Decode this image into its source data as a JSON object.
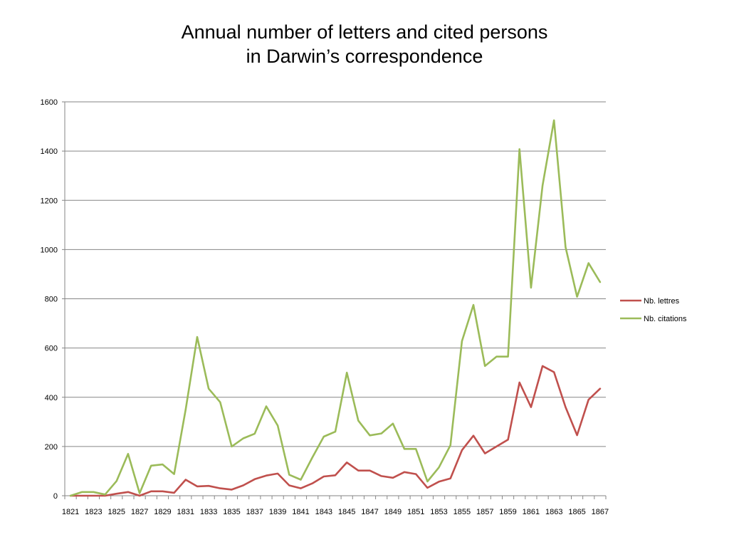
{
  "chart_data": {
    "type": "line",
    "title_line1": "Annual number of letters and cited persons",
    "title_line2": "in Darwin’s correspondence",
    "xlabel": "",
    "ylabel": "",
    "ylim": [
      0,
      1600
    ],
    "yticks": [
      0,
      200,
      400,
      600,
      800,
      1000,
      1200,
      1400,
      1600
    ],
    "x": [
      1821,
      1822,
      1823,
      1824,
      1825,
      1826,
      1827,
      1828,
      1829,
      1830,
      1831,
      1832,
      1833,
      1834,
      1835,
      1836,
      1837,
      1838,
      1839,
      1840,
      1841,
      1842,
      1843,
      1844,
      1845,
      1846,
      1847,
      1848,
      1849,
      1850,
      1851,
      1852,
      1853,
      1854,
      1855,
      1856,
      1857,
      1858,
      1859,
      1860,
      1861,
      1862,
      1863,
      1864,
      1865,
      1866,
      1867
    ],
    "xtick_labels": [
      "1821",
      "1823",
      "1825",
      "1827",
      "1829",
      "1831",
      "1833",
      "1835",
      "1837",
      "1839",
      "1841",
      "1843",
      "1845",
      "1847",
      "1849",
      "1851",
      "1853",
      "1855",
      "1857",
      "1859",
      "1861",
      "1863",
      "1865",
      "1867"
    ],
    "grid": "horizontal",
    "legend_position": "right",
    "series": [
      {
        "name": "Nb. lettres",
        "color": "#c0504d",
        "values": [
          0,
          0,
          0,
          0,
          8,
          15,
          0,
          18,
          18,
          12,
          65,
          38,
          40,
          30,
          25,
          42,
          67,
          82,
          90,
          42,
          30,
          50,
          78,
          83,
          135,
          102,
          102,
          80,
          73,
          96,
          88,
          32,
          57,
          70,
          185,
          244,
          172,
          200,
          228,
          460,
          360,
          527,
          502,
          360,
          246,
          390,
          435
        ]
      },
      {
        "name": "Nb. citations",
        "color": "#9bbb59",
        "values": [
          0,
          15,
          15,
          5,
          60,
          170,
          10,
          122,
          127,
          88,
          350,
          645,
          435,
          380,
          200,
          233,
          252,
          363,
          285,
          85,
          65,
          155,
          240,
          260,
          500,
          305,
          245,
          253,
          293,
          190,
          190,
          58,
          115,
          205,
          628,
          775,
          527,
          565,
          565,
          1408,
          845,
          1260,
          1525,
          1010,
          808,
          945,
          868
        ]
      }
    ]
  }
}
